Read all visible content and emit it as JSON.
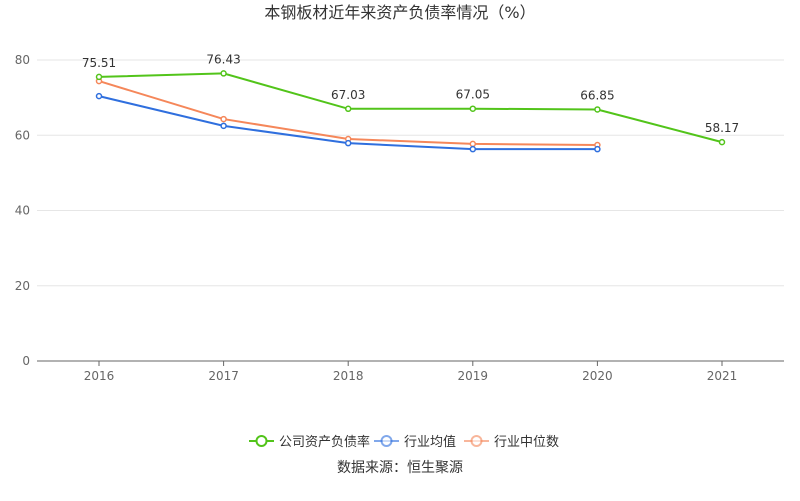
{
  "chart_data": {
    "type": "line",
    "title": "本钢板材近年来资产负债率情况（%）",
    "categories": [
      "2016",
      "2017",
      "2018",
      "2019",
      "2020",
      "2021"
    ],
    "ylim": [
      0,
      80
    ],
    "yticks": [
      0,
      20,
      40,
      60,
      80
    ],
    "grid": true,
    "legend_placement": "bottom",
    "series": [
      {
        "name": "公司资产负债率",
        "color": "#52c41a",
        "values": [
          75.51,
          76.43,
          67.03,
          67.05,
          66.85,
          58.17
        ],
        "show_labels": true
      },
      {
        "name": "行业均值",
        "color": "#2f6fde",
        "values": [
          70.4,
          62.5,
          57.9,
          56.3,
          56.3,
          null
        ],
        "show_labels": false
      },
      {
        "name": "行业中位数",
        "color": "#f5875a",
        "values": [
          74.4,
          64.3,
          59.0,
          57.7,
          57.4,
          null
        ],
        "show_labels": false
      }
    ],
    "source": "数据来源：恒生聚源"
  }
}
